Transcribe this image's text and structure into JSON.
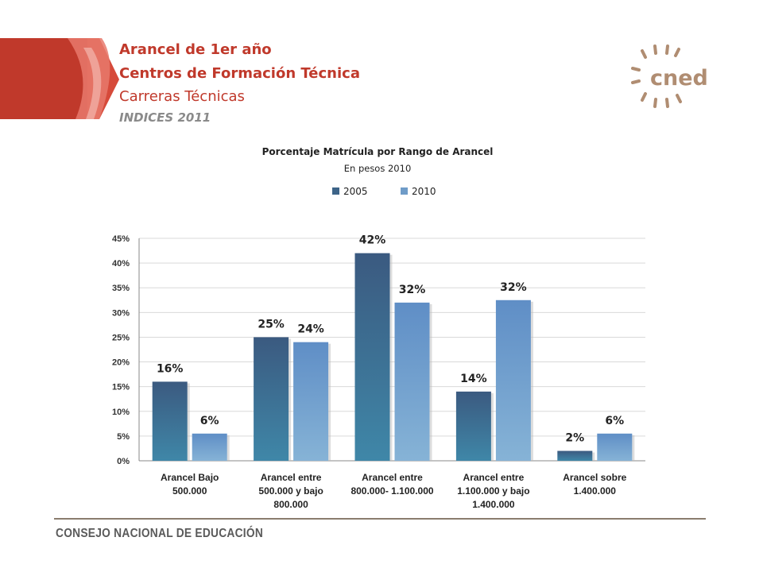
{
  "header": {
    "title_line1": "Arancel de 1er año",
    "title_line2": "Centros de Formación Técnica",
    "title_line3": "Carreras Técnicas",
    "title_line4": "INDICES 2011"
  },
  "logo": {
    "text": "cned",
    "icon": "sunburst-logo-icon"
  },
  "footer": {
    "text": "CONSEJO NACIONAL DE EDUCACIÓN"
  },
  "colors": {
    "accent": "#c0392b",
    "series_2005": "#3d6488",
    "series_2010": "#6f9cc8",
    "footer_line": "#8a7d6e"
  },
  "chart_data": {
    "type": "bar",
    "title": "Porcentaje Matrícula por Rango de Arancel",
    "subtitle": "En pesos 2010",
    "categories": [
      [
        "Arancel Bajo",
        "500.000"
      ],
      [
        "Arancel entre",
        "500.000 y bajo",
        "800.000"
      ],
      [
        "Arancel entre",
        "800.000- 1.100.000"
      ],
      [
        "Arancel entre",
        "1.100.000 y bajo",
        "1.400.000"
      ],
      [
        "Arancel sobre",
        "1.400.000"
      ]
    ],
    "series": [
      {
        "name": "2005",
        "values": [
          0.16,
          0.25,
          0.42,
          0.14,
          0.02
        ],
        "labels": [
          "16%",
          "25%",
          "42%",
          "14%",
          "2%"
        ]
      },
      {
        "name": "2010",
        "values": [
          0.055,
          0.24,
          0.32,
          0.325,
          0.055
        ],
        "labels": [
          "6%",
          "24%",
          "32%",
          "32%",
          "6%"
        ]
      }
    ],
    "ylim": [
      0,
      0.45
    ],
    "yticks": [
      "0%",
      "5%",
      "10%",
      "15%",
      "20%",
      "25%",
      "30%",
      "35%",
      "40%",
      "45%"
    ],
    "grid": true,
    "legend_position": "top"
  }
}
